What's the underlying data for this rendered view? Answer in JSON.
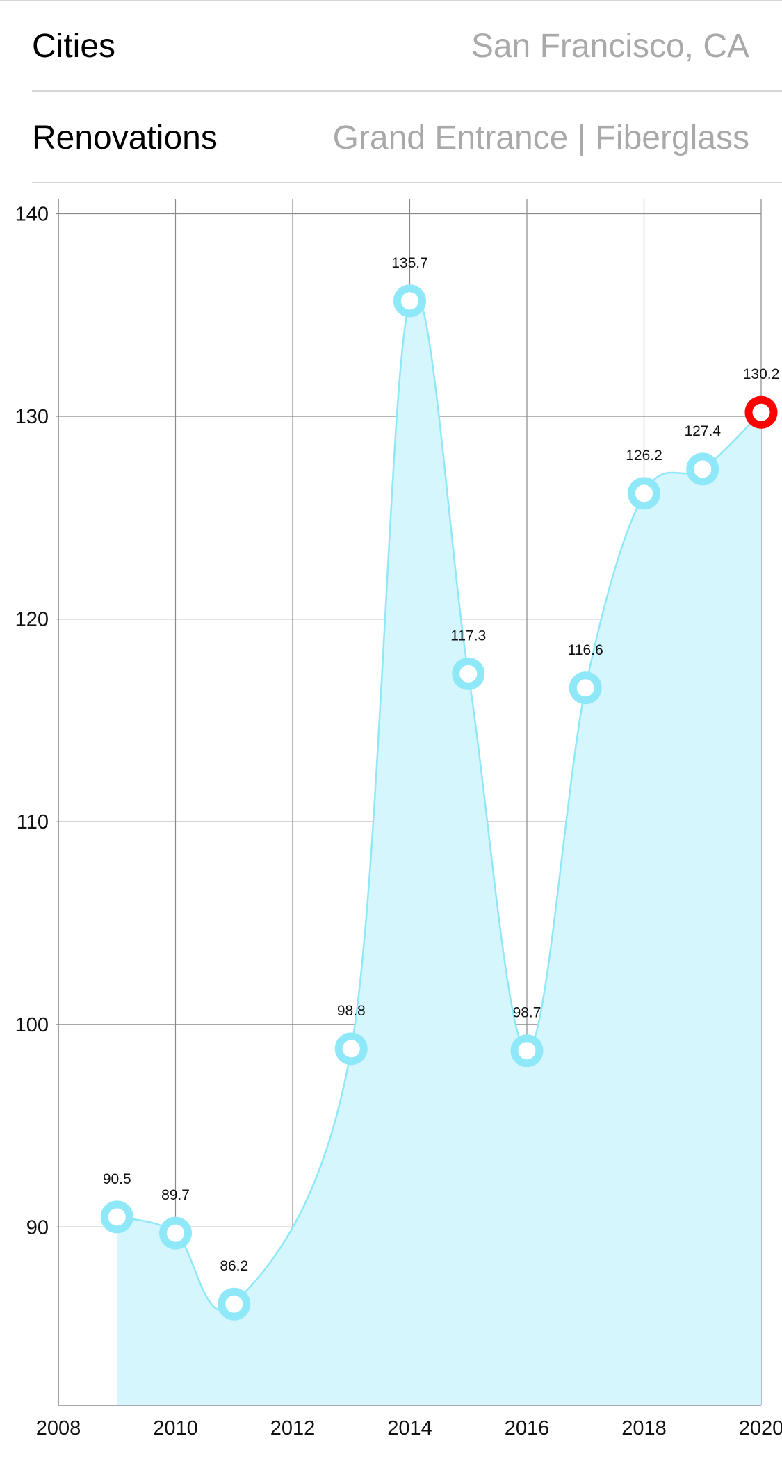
{
  "rows": [
    {
      "label": "Cities",
      "value": "San Francisco, CA"
    },
    {
      "label": "Renovations",
      "value": "Grand Entrance | Fiberglass"
    }
  ],
  "chart_data": {
    "type": "area",
    "title": "",
    "xlabel": "",
    "ylabel": "",
    "xlim": [
      2008,
      2020
    ],
    "ylim": [
      81.2,
      140.6
    ],
    "x_ticks": [
      2008,
      2010,
      2012,
      2014,
      2016,
      2018,
      2020
    ],
    "y_ticks": [
      90,
      100,
      110,
      120,
      130,
      140
    ],
    "grid": true,
    "series": [
      {
        "x": [
          2009,
          2010,
          2011,
          2013,
          2014,
          2015,
          2016,
          2017,
          2018,
          2019,
          2020
        ],
        "values": [
          90.5,
          89.7,
          86.2,
          98.8,
          135.7,
          117.3,
          98.7,
          116.6,
          126.2,
          127.4,
          130.2
        ],
        "labels": [
          "90.5",
          "89.7",
          "86.2",
          "98.8",
          "135.7",
          "117.3",
          "98.7",
          "116.6",
          "126.2",
          "127.4",
          "130.2"
        ],
        "highlight_index": 10
      }
    ],
    "colors": {
      "line": "#8ee8f8",
      "fill": "#d6f6fd",
      "marker": "#8ee8f8",
      "highlight": "#ff0000",
      "grid": "#8a8a8a"
    }
  }
}
